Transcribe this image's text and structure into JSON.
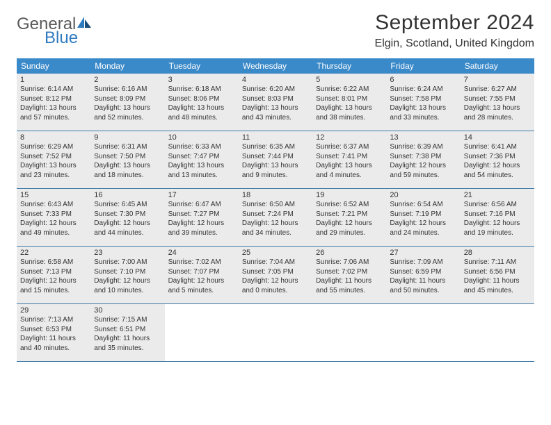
{
  "logo": {
    "word1": "General",
    "word2": "Blue"
  },
  "title": "September 2024",
  "subtitle": "Elgin, Scotland, United Kingdom",
  "colors": {
    "header_bg": "#3a89c9",
    "header_text": "#ffffff",
    "rule": "#3a78a8",
    "shaded": "#ebebeb",
    "logo_gray": "#5a5a5a",
    "logo_blue": "#2f7bbf"
  },
  "day_headers": [
    "Sunday",
    "Monday",
    "Tuesday",
    "Wednesday",
    "Thursday",
    "Friday",
    "Saturday"
  ],
  "weeks": [
    [
      {
        "n": "1",
        "shaded": true,
        "sr": "Sunrise: 6:14 AM",
        "ss": "Sunset: 8:12 PM",
        "d1": "Daylight: 13 hours",
        "d2": "and 57 minutes."
      },
      {
        "n": "2",
        "shaded": true,
        "sr": "Sunrise: 6:16 AM",
        "ss": "Sunset: 8:09 PM",
        "d1": "Daylight: 13 hours",
        "d2": "and 52 minutes."
      },
      {
        "n": "3",
        "shaded": true,
        "sr": "Sunrise: 6:18 AM",
        "ss": "Sunset: 8:06 PM",
        "d1": "Daylight: 13 hours",
        "d2": "and 48 minutes."
      },
      {
        "n": "4",
        "shaded": true,
        "sr": "Sunrise: 6:20 AM",
        "ss": "Sunset: 8:03 PM",
        "d1": "Daylight: 13 hours",
        "d2": "and 43 minutes."
      },
      {
        "n": "5",
        "shaded": true,
        "sr": "Sunrise: 6:22 AM",
        "ss": "Sunset: 8:01 PM",
        "d1": "Daylight: 13 hours",
        "d2": "and 38 minutes."
      },
      {
        "n": "6",
        "shaded": true,
        "sr": "Sunrise: 6:24 AM",
        "ss": "Sunset: 7:58 PM",
        "d1": "Daylight: 13 hours",
        "d2": "and 33 minutes."
      },
      {
        "n": "7",
        "shaded": true,
        "sr": "Sunrise: 6:27 AM",
        "ss": "Sunset: 7:55 PM",
        "d1": "Daylight: 13 hours",
        "d2": "and 28 minutes."
      }
    ],
    [
      {
        "n": "8",
        "shaded": true,
        "sr": "Sunrise: 6:29 AM",
        "ss": "Sunset: 7:52 PM",
        "d1": "Daylight: 13 hours",
        "d2": "and 23 minutes."
      },
      {
        "n": "9",
        "shaded": true,
        "sr": "Sunrise: 6:31 AM",
        "ss": "Sunset: 7:50 PM",
        "d1": "Daylight: 13 hours",
        "d2": "and 18 minutes."
      },
      {
        "n": "10",
        "shaded": true,
        "sr": "Sunrise: 6:33 AM",
        "ss": "Sunset: 7:47 PM",
        "d1": "Daylight: 13 hours",
        "d2": "and 13 minutes."
      },
      {
        "n": "11",
        "shaded": true,
        "sr": "Sunrise: 6:35 AM",
        "ss": "Sunset: 7:44 PM",
        "d1": "Daylight: 13 hours",
        "d2": "and 9 minutes."
      },
      {
        "n": "12",
        "shaded": true,
        "sr": "Sunrise: 6:37 AM",
        "ss": "Sunset: 7:41 PM",
        "d1": "Daylight: 13 hours",
        "d2": "and 4 minutes."
      },
      {
        "n": "13",
        "shaded": true,
        "sr": "Sunrise: 6:39 AM",
        "ss": "Sunset: 7:38 PM",
        "d1": "Daylight: 12 hours",
        "d2": "and 59 minutes."
      },
      {
        "n": "14",
        "shaded": true,
        "sr": "Sunrise: 6:41 AM",
        "ss": "Sunset: 7:36 PM",
        "d1": "Daylight: 12 hours",
        "d2": "and 54 minutes."
      }
    ],
    [
      {
        "n": "15",
        "shaded": true,
        "sr": "Sunrise: 6:43 AM",
        "ss": "Sunset: 7:33 PM",
        "d1": "Daylight: 12 hours",
        "d2": "and 49 minutes."
      },
      {
        "n": "16",
        "shaded": true,
        "sr": "Sunrise: 6:45 AM",
        "ss": "Sunset: 7:30 PM",
        "d1": "Daylight: 12 hours",
        "d2": "and 44 minutes."
      },
      {
        "n": "17",
        "shaded": true,
        "sr": "Sunrise: 6:47 AM",
        "ss": "Sunset: 7:27 PM",
        "d1": "Daylight: 12 hours",
        "d2": "and 39 minutes."
      },
      {
        "n": "18",
        "shaded": true,
        "sr": "Sunrise: 6:50 AM",
        "ss": "Sunset: 7:24 PM",
        "d1": "Daylight: 12 hours",
        "d2": "and 34 minutes."
      },
      {
        "n": "19",
        "shaded": true,
        "sr": "Sunrise: 6:52 AM",
        "ss": "Sunset: 7:21 PM",
        "d1": "Daylight: 12 hours",
        "d2": "and 29 minutes."
      },
      {
        "n": "20",
        "shaded": true,
        "sr": "Sunrise: 6:54 AM",
        "ss": "Sunset: 7:19 PM",
        "d1": "Daylight: 12 hours",
        "d2": "and 24 minutes."
      },
      {
        "n": "21",
        "shaded": true,
        "sr": "Sunrise: 6:56 AM",
        "ss": "Sunset: 7:16 PM",
        "d1": "Daylight: 12 hours",
        "d2": "and 19 minutes."
      }
    ],
    [
      {
        "n": "22",
        "shaded": true,
        "sr": "Sunrise: 6:58 AM",
        "ss": "Sunset: 7:13 PM",
        "d1": "Daylight: 12 hours",
        "d2": "and 15 minutes."
      },
      {
        "n": "23",
        "shaded": true,
        "sr": "Sunrise: 7:00 AM",
        "ss": "Sunset: 7:10 PM",
        "d1": "Daylight: 12 hours",
        "d2": "and 10 minutes."
      },
      {
        "n": "24",
        "shaded": true,
        "sr": "Sunrise: 7:02 AM",
        "ss": "Sunset: 7:07 PM",
        "d1": "Daylight: 12 hours",
        "d2": "and 5 minutes."
      },
      {
        "n": "25",
        "shaded": true,
        "sr": "Sunrise: 7:04 AM",
        "ss": "Sunset: 7:05 PM",
        "d1": "Daylight: 12 hours",
        "d2": "and 0 minutes."
      },
      {
        "n": "26",
        "shaded": true,
        "sr": "Sunrise: 7:06 AM",
        "ss": "Sunset: 7:02 PM",
        "d1": "Daylight: 11 hours",
        "d2": "and 55 minutes."
      },
      {
        "n": "27",
        "shaded": true,
        "sr": "Sunrise: 7:09 AM",
        "ss": "Sunset: 6:59 PM",
        "d1": "Daylight: 11 hours",
        "d2": "and 50 minutes."
      },
      {
        "n": "28",
        "shaded": true,
        "sr": "Sunrise: 7:11 AM",
        "ss": "Sunset: 6:56 PM",
        "d1": "Daylight: 11 hours",
        "d2": "and 45 minutes."
      }
    ],
    [
      {
        "n": "29",
        "shaded": true,
        "sr": "Sunrise: 7:13 AM",
        "ss": "Sunset: 6:53 PM",
        "d1": "Daylight: 11 hours",
        "d2": "and 40 minutes."
      },
      {
        "n": "30",
        "shaded": true,
        "sr": "Sunrise: 7:15 AM",
        "ss": "Sunset: 6:51 PM",
        "d1": "Daylight: 11 hours",
        "d2": "and 35 minutes."
      },
      {
        "empty": true
      },
      {
        "empty": true
      },
      {
        "empty": true
      },
      {
        "empty": true
      },
      {
        "empty": true
      }
    ]
  ]
}
